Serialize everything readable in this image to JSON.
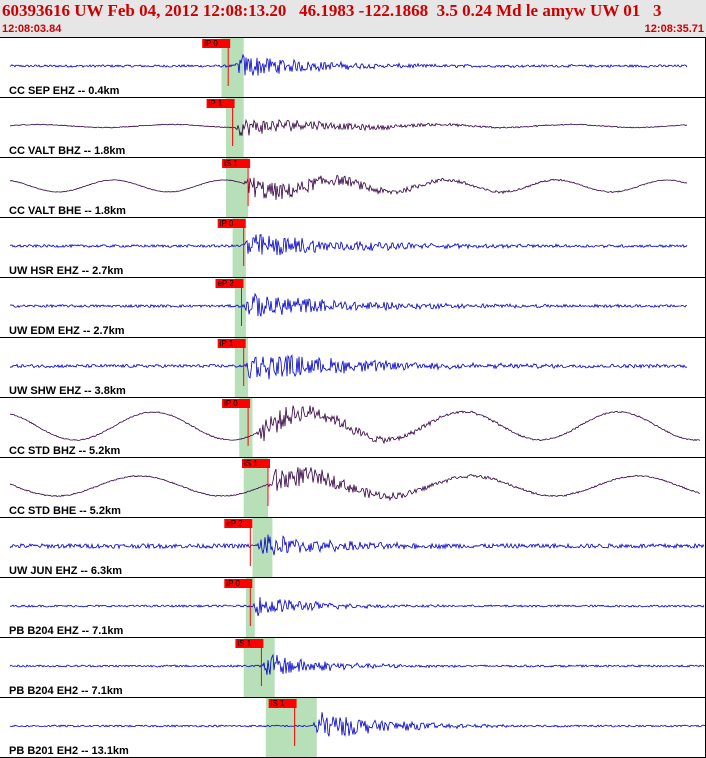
{
  "header": {
    "title": "60393616 UW Feb 04, 2012 12:08:13.20   46.1983 -122.1868  3.5 0.24 Md le amyw UW 01   3",
    "start_time": "12:08:03.84",
    "end_time": "12:08:35.71"
  },
  "colors": {
    "header_bg": "#e6e6e6",
    "header_text": "#cc0000",
    "trace_vertical": "#0000cc",
    "trace_horizontal": "#330044",
    "pick": "#ff0000",
    "pick_window": "#b8e0b8"
  },
  "chart_data": {
    "type": "line",
    "title": "60393616 UW Feb 04, 2012 12:08:13.20   46.1983 -122.1868  3.5 0.24 Md le amyw UW 01   3",
    "x_range": [
      "12:08:03.84",
      "12:08:35.71"
    ],
    "x_range_seconds": [
      0,
      31.87
    ],
    "traces": [
      {
        "label": "CC SEP EHZ -- 0.4km",
        "component": "Z",
        "color": "#0000cc",
        "pick": "iP 0",
        "pick_time": 10.3,
        "window": [
          10.0,
          11.0
        ],
        "onset": 10.6,
        "decay": 3.5,
        "amp": 13,
        "noise": 1.2,
        "long_period": 0,
        "long_amp": 0,
        "end_time": 31.0
      },
      {
        "label": "CC VALT BHZ -- 1.8km",
        "component": "Z",
        "color": "#330044",
        "pick": "iP 1",
        "pick_time": 10.5,
        "window": [
          10.2,
          11.0
        ],
        "onset": 10.6,
        "decay": 4.5,
        "amp": 10,
        "noise": 0.4,
        "long_period": 6,
        "long_amp": 1.5,
        "end_time": 31.0
      },
      {
        "label": "CC VALT BHE -- 1.8km",
        "component": "E",
        "color": "#330044",
        "pick": "iS 1",
        "pick_time": 11.2,
        "window": [
          10.2,
          11.2
        ],
        "onset": 11.0,
        "decay": 5,
        "amp": 12,
        "noise": 0.3,
        "long_period": 5,
        "long_amp": 6,
        "end_time": 31.0
      },
      {
        "label": "UW HSR EHZ -- 2.7km",
        "component": "Z",
        "color": "#0000cc",
        "pick": "iP 0",
        "pick_time": 11.0,
        "window": [
          10.5,
          11.1
        ],
        "onset": 10.9,
        "decay": 4.5,
        "amp": 14,
        "noise": 1.3,
        "long_period": 0,
        "long_amp": 0,
        "end_time": 31.0
      },
      {
        "label": "UW EDM EHZ -- 2.7km",
        "component": "Z",
        "color": "#0000cc",
        "pick": "eP 2",
        "pick_time": 10.9,
        "window": [
          10.6,
          11.1
        ],
        "onset": 11.0,
        "decay": 4.5,
        "amp": 14,
        "noise": 1.3,
        "long_period": 0,
        "long_amp": 0,
        "end_time": 31.0
      },
      {
        "label": "UW SHW EHZ -- 3.8km",
        "component": "Z",
        "color": "#0000cc",
        "pick": "iP 1",
        "pick_time": 11.0,
        "window": [
          10.6,
          11.2
        ],
        "onset": 11.0,
        "decay": 5,
        "amp": 16,
        "noise": 1.6,
        "long_period": 0,
        "long_amp": 0,
        "end_time": 31.0
      },
      {
        "label": "CC STD BHZ -- 5.2km",
        "component": "Z",
        "color": "#330044",
        "pick": "iP 0",
        "pick_time": 11.2,
        "window": [
          10.8,
          11.4
        ],
        "onset": 11.6,
        "decay": 4,
        "amp": 14,
        "noise": 0.6,
        "long_period": 7,
        "long_amp": 14,
        "end_time": 31.6
      },
      {
        "label": "CC STD BHE -- 5.2km",
        "component": "E",
        "color": "#330044",
        "pick": "iS 1",
        "pick_time": 12.1,
        "window": [
          11.0,
          12.1
        ],
        "onset": 12.1,
        "decay": 4,
        "amp": 14,
        "noise": 0.6,
        "long_period": 7.5,
        "long_amp": 10,
        "end_time": 31.6
      },
      {
        "label": "UW JUN EHZ -- 6.3km",
        "component": "Z",
        "color": "#0000cc",
        "pick": "eP 2",
        "pick_time": 11.3,
        "window": [
          11.4,
          12.3
        ],
        "onset": 11.6,
        "decay": 3,
        "amp": 14,
        "noise": 2.2,
        "long_period": 0,
        "long_amp": 0,
        "end_time": 31.8
      },
      {
        "label": "PB B204 EHZ -- 7.1km",
        "component": "Z",
        "color": "#0000cc",
        "pick": "iP 0",
        "pick_time": 11.3,
        "window": [
          11.1,
          11.5
        ],
        "onset": 11.4,
        "decay": 2.5,
        "amp": 12,
        "noise": 1.0,
        "long_period": 0,
        "long_amp": 0,
        "end_time": 31.8
      },
      {
        "label": "PB B204 EH2 -- 7.1km",
        "component": "N",
        "color": "#0000cc",
        "pick": "iS 1",
        "pick_time": 11.8,
        "window": [
          11.0,
          12.4
        ],
        "onset": 11.8,
        "decay": 2.5,
        "amp": 14,
        "noise": 1.0,
        "long_period": 0,
        "long_amp": 0,
        "end_time": 31.8
      },
      {
        "label": "PB B201 EH2 -- 13.1km",
        "component": "N",
        "color": "#0000cc",
        "pick": "iS 1",
        "pick_time": 13.3,
        "window": [
          12.0,
          14.3
        ],
        "onset": 14.1,
        "decay": 3,
        "amp": 16,
        "noise": 0.9,
        "long_period": 0,
        "long_amp": 0,
        "end_time": 31.87
      }
    ]
  }
}
